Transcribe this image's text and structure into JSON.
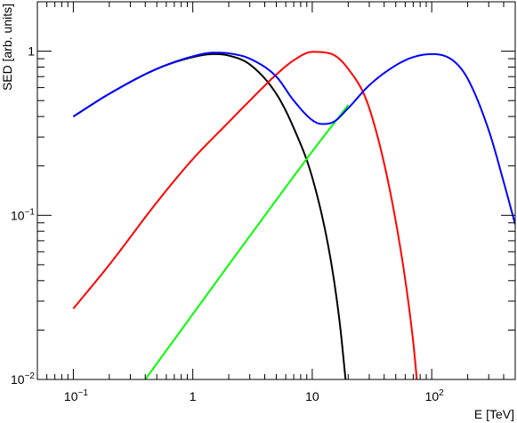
{
  "chart_data": {
    "type": "line",
    "xlabel": "E [TeV]",
    "ylabel": "SED [arb. units]",
    "xscale": "log",
    "yscale": "log",
    "xlim": [
      0.05,
      500
    ],
    "ylim": [
      0.01,
      2
    ],
    "grid": false,
    "x_ticks": [
      {
        "value": 0.1,
        "base": "10",
        "exp": "−1"
      },
      {
        "value": 1,
        "base": "1",
        "exp": ""
      },
      {
        "value": 10,
        "base": "10",
        "exp": ""
      },
      {
        "value": 100,
        "base": "10",
        "exp": "2"
      }
    ],
    "y_ticks": [
      {
        "value": 0.01,
        "base": "10",
        "exp": "−2"
      },
      {
        "value": 0.1,
        "base": "10",
        "exp": "−1"
      },
      {
        "value": 1,
        "base": "1",
        "exp": ""
      }
    ],
    "series": [
      {
        "color": "#000000",
        "x": [
          0.1,
          0.2,
          0.5,
          1,
          1.5,
          2,
          3,
          5,
          7,
          10,
          14,
          17,
          19
        ],
        "y": [
          0.4,
          0.55,
          0.78,
          0.92,
          0.96,
          0.94,
          0.83,
          0.55,
          0.34,
          0.17,
          0.058,
          0.022,
          0.01
        ]
      },
      {
        "color": "#ff0000",
        "x": [
          0.1,
          0.2,
          0.5,
          1,
          2,
          3,
          5,
          7,
          10,
          14,
          20,
          30,
          50,
          70,
          75
        ],
        "y": [
          0.027,
          0.05,
          0.12,
          0.22,
          0.37,
          0.5,
          0.72,
          0.88,
          0.99,
          0.97,
          0.78,
          0.45,
          0.092,
          0.017,
          0.01
        ]
      },
      {
        "color": "#00ff00",
        "x": [
          0.4,
          1,
          2,
          5,
          10,
          20
        ],
        "y": [
          0.01,
          0.025,
          0.05,
          0.124,
          0.245,
          0.47
        ]
      },
      {
        "color": "#0000ff",
        "x": [
          0.1,
          0.2,
          0.5,
          1,
          1.5,
          2,
          3,
          5,
          7,
          10,
          12,
          15,
          20,
          30,
          50,
          70,
          100,
          150,
          200,
          300,
          400,
          500
        ],
        "y": [
          0.4,
          0.55,
          0.78,
          0.93,
          0.98,
          0.97,
          0.9,
          0.7,
          0.5,
          0.38,
          0.36,
          0.37,
          0.45,
          0.62,
          0.82,
          0.92,
          0.96,
          0.88,
          0.68,
          0.33,
          0.16,
          0.088
        ]
      }
    ]
  }
}
